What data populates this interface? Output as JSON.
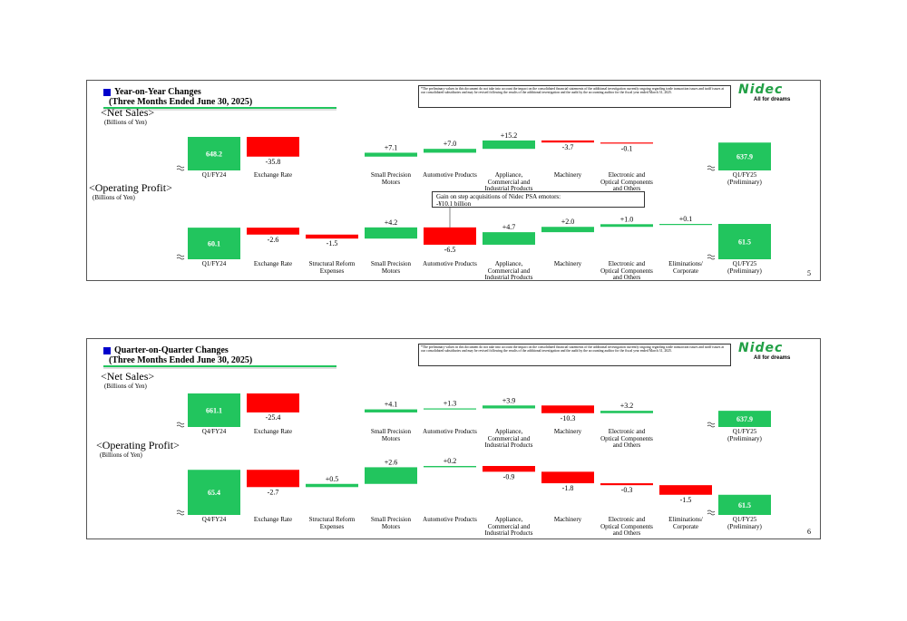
{
  "slides": [
    {
      "title": [
        "Year-on-Year Changes",
        "(Three Months Ended June 30, 2025)"
      ],
      "note": "*The preliminary values in this document do not take into account the impact on the consolidated financial statements of the additional investigation currently ongoing regarding trade transaction issues and tariff issues at our consolidated subsidiaries and may be revised following the results of the additional investigation and the audit by the accounting auditor for the fiscal year ended March 31, 2025.",
      "logo": "Nidec",
      "tagline": "All for dreams",
      "page": "5"
    },
    {
      "title": [
        "Quarter-on-Quarter Changes",
        "(Three Months Ended June 30, 2025)"
      ],
      "note": "*The preliminary values in this document do not take into account the impact on the consolidated financial statements of the additional investigation currently ongoing regarding trade transaction issues and tariff issues at our consolidated subsidiaries and may be revised following the results of the additional investigation and the audit by the accounting auditor for the fiscal year ended March 31, 2025.",
      "logo": "Nidec",
      "tagline": "All for dreams",
      "page": "6"
    }
  ],
  "chart_data": [
    {
      "type": "waterfall",
      "title": "<Net Sales>",
      "unit_label": "(Billions of Yen)",
      "categories": [
        "Q1/FY24",
        "Exchange Rate",
        null,
        "Small Precision Motors",
        "Automotive Products",
        "Appliance, Commercial and Industrial Products",
        "Machinery",
        "Electronic and Optical Components and Others",
        null,
        "Q1/FY25 (Preliminary)"
      ],
      "values": [
        648.2,
        -35.8,
        null,
        7.1,
        7.0,
        15.2,
        -3.7,
        -0.1,
        null,
        637.9
      ],
      "value_labels": [
        "648.2",
        "-35.8",
        null,
        "+7.1",
        "+7.0",
        "+15.2",
        "-3.7",
        "-0.1",
        null,
        "637.9"
      ],
      "total_color": "#22c55e",
      "increase_color": "#22c55e",
      "decrease_color": "#ff0000"
    },
    {
      "type": "waterfall",
      "title": "<Operating Profit>",
      "unit_label": "(Billions of Yen)",
      "categories": [
        "Q1/FY24",
        "Exchange Rate",
        "Structural Reform Expenses",
        "Small Precision Motors",
        "Automotive Products",
        "Appliance, Commercial and Industrial Products",
        "Machinery",
        "Electronic and Optical Components and Others",
        "Eliminations/ Corporate",
        "Q1/FY25 (Preliminary)"
      ],
      "values": [
        60.1,
        -2.6,
        -1.5,
        4.2,
        -6.5,
        4.7,
        2.0,
        1.0,
        0.1,
        61.5
      ],
      "value_labels": [
        "60.1",
        "-2.6",
        "-1.5",
        "+4.2",
        "-6.5",
        "+4.7",
        "+2.0",
        "+1.0",
        "+0.1",
        "61.5"
      ],
      "annotation": [
        "Gain on step acquisitions of Nidec PSA emotors:",
        "-¥10.1 billion"
      ],
      "total_color": "#22c55e",
      "increase_color": "#22c55e",
      "decrease_color": "#ff0000"
    },
    {
      "type": "waterfall",
      "title": "<Net Sales>",
      "unit_label": "(Billions of Yen)",
      "categories": [
        "Q4/FY24",
        "Exchange Rate",
        null,
        "Small Precision Motors",
        "Automotive Products",
        "Appliance, Commercial and Industrial Products",
        "Machinery",
        "Electronic and Optical Components and Others",
        null,
        "Q1/FY25 (Preliminary)"
      ],
      "values": [
        661.1,
        -25.4,
        null,
        4.1,
        1.3,
        3.9,
        -10.3,
        3.2,
        null,
        637.9
      ],
      "value_labels": [
        "661.1",
        "-25.4",
        null,
        "+4.1",
        "+1.3",
        "+3.9",
        "-10.3",
        "+3.2",
        null,
        "637.9"
      ],
      "total_color": "#22c55e",
      "increase_color": "#22c55e",
      "decrease_color": "#ff0000"
    },
    {
      "type": "waterfall",
      "title": "<Operating Profit>",
      "unit_label": "(Billions of Yen)",
      "categories": [
        "Q4/FY24",
        "Exchange Rate",
        "Structural Reform Expenses",
        "Small Precision Motors",
        "Automotive Products",
        "Appliance, Commercial and Industrial Products",
        "Machinery",
        "Electronic and Optical Components and Others",
        "Eliminations/ Corporate",
        "Q1/FY25 (Preliminary)"
      ],
      "values": [
        65.4,
        -2.7,
        0.5,
        2.6,
        0.2,
        -0.9,
        -1.8,
        -0.3,
        -1.5,
        61.5
      ],
      "value_labels": [
        "65.4",
        "-2.7",
        "+0.5",
        "+2.6",
        "+0.2",
        "-0.9",
        "-1.8",
        "-0.3",
        "-1.5",
        "61.5"
      ],
      "total_color": "#22c55e",
      "increase_color": "#22c55e",
      "decrease_color": "#ff0000"
    }
  ]
}
